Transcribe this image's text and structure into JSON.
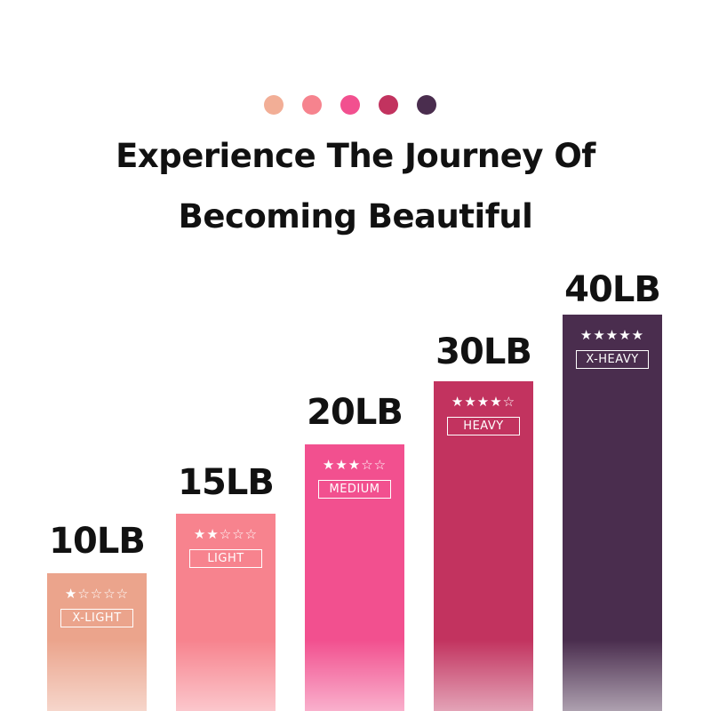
{
  "header": {
    "dots": [
      "#F2AE96",
      "#F6838E",
      "#F2508F",
      "#C2335F",
      "#4A2D4E"
    ],
    "title_line1": "Experience The Journey Of",
    "title_line2": "Becoming Beautiful"
  },
  "bands": [
    {
      "weight": "10LB",
      "stars": "★☆☆☆☆",
      "rating": 1,
      "level": "X-LIGHT",
      "color": "#EBA48C"
    },
    {
      "weight": "15LB",
      "stars": "★★☆☆☆",
      "rating": 2,
      "level": "LIGHT",
      "color": "#F7838E"
    },
    {
      "weight": "20LB",
      "stars": "★★★☆☆",
      "rating": 3,
      "level": "MEDIUM",
      "color": "#F2508F"
    },
    {
      "weight": "30LB",
      "stars": "★★★★☆",
      "rating": 4,
      "level": "HEAVY",
      "color": "#C2335F"
    },
    {
      "weight": "40LB",
      "stars": "★★★★★",
      "rating": 5,
      "level": "X-HEAVY",
      "color": "#4A2D4E"
    }
  ]
}
